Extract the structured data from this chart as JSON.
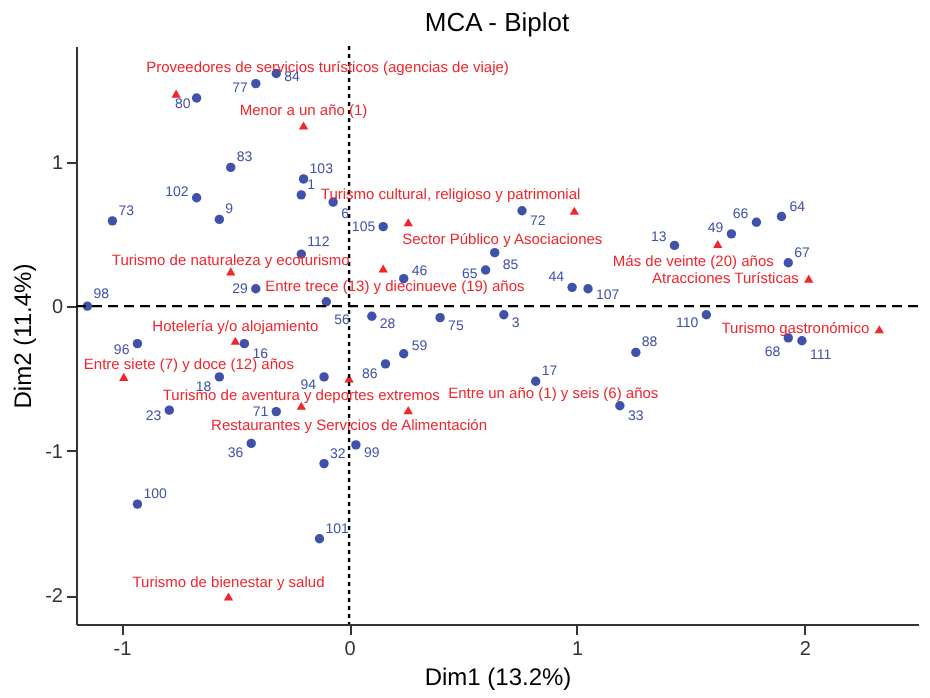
{
  "chart_data": {
    "type": "scatter",
    "title": "MCA - Biplot",
    "xlabel": "Dim1 (13.2%)",
    "ylabel": "Dim2 (11.4%)",
    "xlim": [
      -1.2,
      2.5
    ],
    "ylim": [
      -2.2,
      1.8
    ],
    "xticks": [
      -1,
      0,
      1,
      2
    ],
    "yticks": [
      -2,
      -1,
      0,
      1
    ],
    "grid": false,
    "legend": false,
    "ref_lines": [
      {
        "axis": "x",
        "value": 0,
        "label": null,
        "color": "#000000",
        "line_style": "dotted"
      },
      {
        "axis": "y",
        "value": 0,
        "label": null,
        "color": "#000000",
        "line_style": "dashed"
      }
    ],
    "series": [
      {
        "color": "#3f51a8",
        "marker": "circle",
        "x": [
          -0.32,
          -0.41,
          -0.67,
          -0.52,
          -0.67,
          -0.2,
          -0.21,
          -1.04,
          -0.57,
          -0.07,
          0.15,
          -0.21,
          0.24,
          -0.41,
          -0.1,
          0.1,
          -1.15,
          1.9,
          1.79,
          1.68,
          1.43,
          1.93,
          0.76,
          0.64,
          0.6,
          0.98,
          1.05,
          0.68,
          1.57,
          1.93,
          1.99,
          1.26,
          0.82,
          1.19,
          -0.93,
          -0.46,
          -0.57,
          -0.79,
          -0.11,
          -0.43,
          -0.32,
          0.03,
          -0.11,
          -0.93,
          -0.13,
          0.24,
          0.16,
          0.4
        ],
        "values": [
          1.61,
          1.54,
          1.44,
          0.96,
          0.75,
          0.88,
          0.77,
          0.59,
          0.6,
          0.72,
          0.55,
          0.36,
          0.19,
          0.12,
          0.03,
          -0.07,
          0.0,
          0.62,
          0.58,
          0.5,
          0.42,
          0.3,
          0.66,
          0.37,
          0.25,
          0.13,
          0.12,
          -0.06,
          -0.06,
          -0.22,
          -0.24,
          -0.32,
          -0.52,
          -0.69,
          -0.26,
          -0.26,
          -0.49,
          -0.72,
          -0.49,
          -0.95,
          -0.73,
          -0.96,
          -1.09,
          -1.37,
          -1.61,
          -0.33,
          -0.4,
          -0.08
        ]
      },
      {
        "color": "#f0262c",
        "marker": "triangle",
        "x": [
          -0.76,
          -0.2,
          0.99,
          0.26,
          1.62,
          2.02,
          -0.52,
          0.15,
          2.33,
          -0.5,
          -0.99,
          -0.21,
          0.26,
          0.0,
          -0.53
        ],
        "values": [
          1.47,
          1.25,
          0.66,
          0.58,
          0.43,
          0.19,
          0.24,
          0.26,
          -0.16,
          -0.24,
          -0.49,
          -0.69,
          -0.72,
          -0.5,
          -2.01
        ]
      }
    ],
    "annotations": [
      {
        "text": "84",
        "x": -0.32,
        "y": 1.61
      },
      {
        "text": "77",
        "x": -0.41,
        "y": 1.54
      },
      {
        "text": "80",
        "x": -0.67,
        "y": 1.44
      },
      {
        "text": "83",
        "x": -0.52,
        "y": 0.96
      },
      {
        "text": "102",
        "x": -0.67,
        "y": 0.75
      },
      {
        "text": "103",
        "x": -0.2,
        "y": 0.88
      },
      {
        "text": "1",
        "x": -0.21,
        "y": 0.77
      },
      {
        "text": "73",
        "x": -1.04,
        "y": 0.59
      },
      {
        "text": "9",
        "x": -0.57,
        "y": 0.6
      },
      {
        "text": "6",
        "x": -0.07,
        "y": 0.72
      },
      {
        "text": "105",
        "x": 0.15,
        "y": 0.55
      },
      {
        "text": "112",
        "x": -0.21,
        "y": 0.36
      },
      {
        "text": "46",
        "x": 0.24,
        "y": 0.19
      },
      {
        "text": "29",
        "x": -0.41,
        "y": 0.12
      },
      {
        "text": "56",
        "x": -0.1,
        "y": 0.03
      },
      {
        "text": "28",
        "x": 0.1,
        "y": -0.07
      },
      {
        "text": "98",
        "x": -1.15,
        "y": 0.0
      },
      {
        "text": "64",
        "x": 1.9,
        "y": 0.62
      },
      {
        "text": "66",
        "x": 1.79,
        "y": 0.58
      },
      {
        "text": "49",
        "x": 1.68,
        "y": 0.5
      },
      {
        "text": "13",
        "x": 1.43,
        "y": 0.42
      },
      {
        "text": "67",
        "x": 1.93,
        "y": 0.3
      },
      {
        "text": "72",
        "x": 0.76,
        "y": 0.66
      },
      {
        "text": "85",
        "x": 0.64,
        "y": 0.37
      },
      {
        "text": "65",
        "x": 0.6,
        "y": 0.25
      },
      {
        "text": "44",
        "x": 0.98,
        "y": 0.13
      },
      {
        "text": "107",
        "x": 1.05,
        "y": 0.12
      },
      {
        "text": "3",
        "x": 0.68,
        "y": -0.06
      },
      {
        "text": "110",
        "x": 1.57,
        "y": -0.06
      },
      {
        "text": "68",
        "x": 1.93,
        "y": -0.22
      },
      {
        "text": "111",
        "x": 1.99,
        "y": -0.24
      },
      {
        "text": "88",
        "x": 1.26,
        "y": -0.32
      },
      {
        "text": "17",
        "x": 0.82,
        "y": -0.52
      },
      {
        "text": "33",
        "x": 1.19,
        "y": -0.69
      },
      {
        "text": "96",
        "x": -0.93,
        "y": -0.26
      },
      {
        "text": "16",
        "x": -0.46,
        "y": -0.26
      },
      {
        "text": "18",
        "x": -0.57,
        "y": -0.49
      },
      {
        "text": "23",
        "x": -0.79,
        "y": -0.72
      },
      {
        "text": "94",
        "x": -0.11,
        "y": -0.49
      },
      {
        "text": "36",
        "x": -0.43,
        "y": -0.95
      },
      {
        "text": "71",
        "x": -0.32,
        "y": -0.73
      },
      {
        "text": "99",
        "x": 0.03,
        "y": -0.96
      },
      {
        "text": "32",
        "x": -0.11,
        "y": -1.09
      },
      {
        "text": "100",
        "x": -0.93,
        "y": -1.37
      },
      {
        "text": "101",
        "x": -0.13,
        "y": -1.61
      },
      {
        "text": "59",
        "x": 0.24,
        "y": -0.33
      },
      {
        "text": "86",
        "x": 0.16,
        "y": -0.4
      },
      {
        "text": "75",
        "x": 0.4,
        "y": -0.08
      },
      {
        "text": "Proveedores de servicios turísticos (agencias de viaje)",
        "x": -0.76,
        "y": 1.47
      },
      {
        "text": "Menor a un año (1)",
        "x": -0.2,
        "y": 1.25
      },
      {
        "text": "Turismo cultural, religioso y patrimonial",
        "x": 0.99,
        "y": 0.66
      },
      {
        "text": "Sector Público y Asociaciones",
        "x": 0.26,
        "y": 0.58
      },
      {
        "text": "Más de veinte (20) años",
        "x": 1.62,
        "y": 0.43
      },
      {
        "text": "Atracciones Turísticas",
        "x": 2.02,
        "y": 0.19
      },
      {
        "text": "Turismo de naturaleza y ecoturismo",
        "x": -0.52,
        "y": 0.24
      },
      {
        "text": "Entre trece (13) y diecinueve (19) años",
        "x": 0.15,
        "y": 0.26
      },
      {
        "text": "Turismo gastronómico",
        "x": 2.33,
        "y": -0.16
      },
      {
        "text": "Hotelería y/o alojamiento",
        "x": -0.5,
        "y": -0.24
      },
      {
        "text": "Entre siete (7) y doce (12) años",
        "x": -0.99,
        "y": -0.49
      },
      {
        "text": "Turismo de aventura y deportes extremos",
        "x": -0.21,
        "y": -0.69
      },
      {
        "text": "Entre un año (1) y seis (6) años",
        "x": 0.26,
        "y": -0.72
      },
      {
        "text": "Restaurantes y Servicios de Alimentación",
        "x": 0.0,
        "y": -0.5
      },
      {
        "text": "Turismo de bienestar y salud",
        "x": -0.53,
        "y": -2.01
      }
    ]
  }
}
